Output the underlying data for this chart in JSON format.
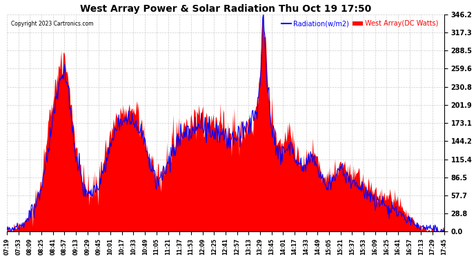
{
  "title": "West Array Power & Solar Radiation Thu Oct 19 17:50",
  "copyright": "Copyright 2023 Cartronics.com",
  "legend_radiation": "Radiation(w/m2)",
  "legend_west": "West Array(DC Watts)",
  "radiation_color": "blue",
  "west_color": "red",
  "background_color": "#ffffff",
  "grid_color": "#aaaaaa",
  "ymin": 0.0,
  "ymax": 346.2,
  "yticks": [
    0.0,
    28.8,
    57.7,
    86.5,
    115.4,
    144.2,
    173.1,
    201.9,
    230.8,
    259.6,
    288.5,
    317.3,
    346.2
  ],
  "ytick_labels": [
    "0.0",
    "28.8",
    "57.7",
    "86.5",
    "115.4",
    "144.2",
    "173.1",
    "201.9",
    "230.8",
    "259.6",
    "288.5",
    "317.3",
    "346.2"
  ],
  "xtick_labels": [
    "07:19",
    "07:53",
    "08:09",
    "08:25",
    "08:41",
    "08:57",
    "09:13",
    "09:29",
    "09:45",
    "10:01",
    "10:17",
    "10:33",
    "10:49",
    "11:05",
    "11:21",
    "11:37",
    "11:53",
    "12:09",
    "12:25",
    "12:41",
    "12:57",
    "13:13",
    "13:29",
    "13:45",
    "14:01",
    "14:17",
    "14:33",
    "14:49",
    "15:05",
    "15:21",
    "15:37",
    "15:53",
    "16:09",
    "16:25",
    "16:41",
    "16:57",
    "17:13",
    "17:29",
    "17:45"
  ]
}
